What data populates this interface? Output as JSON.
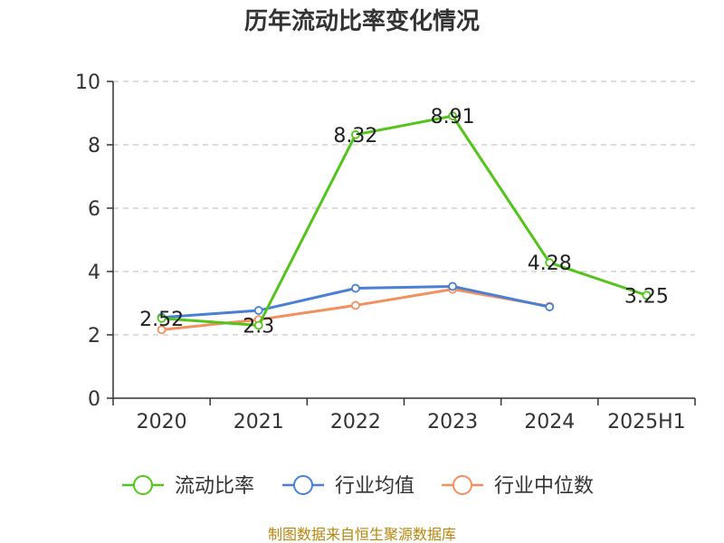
{
  "chart_data": {
    "type": "line",
    "title": "历年流动比率变化情况",
    "categories": [
      "2020",
      "2021",
      "2022",
      "2023",
      "2024",
      "2025H1"
    ],
    "ylim": [
      0,
      10
    ],
    "yticks": [
      0,
      2,
      4,
      6,
      8,
      10
    ],
    "grid": true,
    "legend_position": "bottom",
    "series": [
      {
        "name": "流动比率",
        "color": "#52c41a",
        "values": [
          2.52,
          2.3,
          8.32,
          8.91,
          4.28,
          3.25
        ],
        "labels": [
          "2.52",
          "2.3",
          "8.32",
          "8.91",
          "4.28",
          "3.25"
        ]
      },
      {
        "name": "行业均值",
        "color": "#4a7fd6",
        "values": [
          2.55,
          2.77,
          3.47,
          3.53,
          2.88,
          null
        ]
      },
      {
        "name": "行业中位数",
        "color": "#f39060",
        "values": [
          2.16,
          2.48,
          2.93,
          3.44,
          2.9,
          null
        ]
      }
    ]
  },
  "source": "制图数据来自恒生聚源数据库"
}
